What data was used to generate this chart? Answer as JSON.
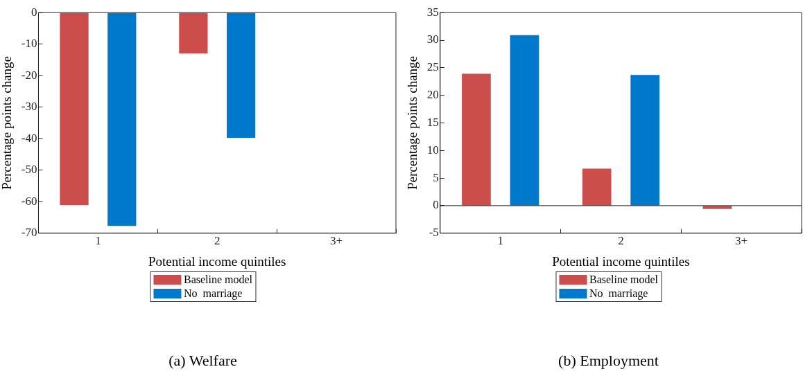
{
  "chart_data": [
    {
      "type": "bar",
      "title": "(a) Welfare",
      "xlabel": "Potential income quintiles",
      "ylabel": "Percentage points change",
      "categories": [
        "1",
        "2",
        "3+"
      ],
      "series": [
        {
          "name": "Baseline model",
          "color": "#cd4d4d",
          "values": [
            -61.1,
            -13.0,
            null
          ]
        },
        {
          "name": "No  marriage",
          "color": "#0079cc",
          "values": [
            -67.7,
            -39.7,
            -0.1
          ]
        }
      ],
      "ylim": [
        -70,
        0
      ],
      "yticks": [
        -70,
        -60,
        -50,
        -40,
        -30,
        -20,
        -10,
        0
      ],
      "legend": "bottom"
    },
    {
      "type": "bar",
      "title": "(b) Employment",
      "xlabel": "Potential income quintiles",
      "ylabel": "Percentage points change",
      "categories": [
        "1",
        "2",
        "3+"
      ],
      "series": [
        {
          "name": "Baseline model",
          "color": "#cd4d4d",
          "values": [
            23.9,
            6.7,
            -0.6
          ]
        },
        {
          "name": "No  marriage",
          "color": "#0079cc",
          "values": [
            30.9,
            23.7,
            null
          ]
        }
      ],
      "ylim": [
        -5,
        35
      ],
      "yticks": [
        -5,
        0,
        5,
        10,
        15,
        20,
        25,
        30,
        35
      ],
      "legend": "bottom",
      "ref_lines": [
        {
          "axis": "y",
          "value": 0,
          "color": "#000000"
        }
      ]
    }
  ]
}
